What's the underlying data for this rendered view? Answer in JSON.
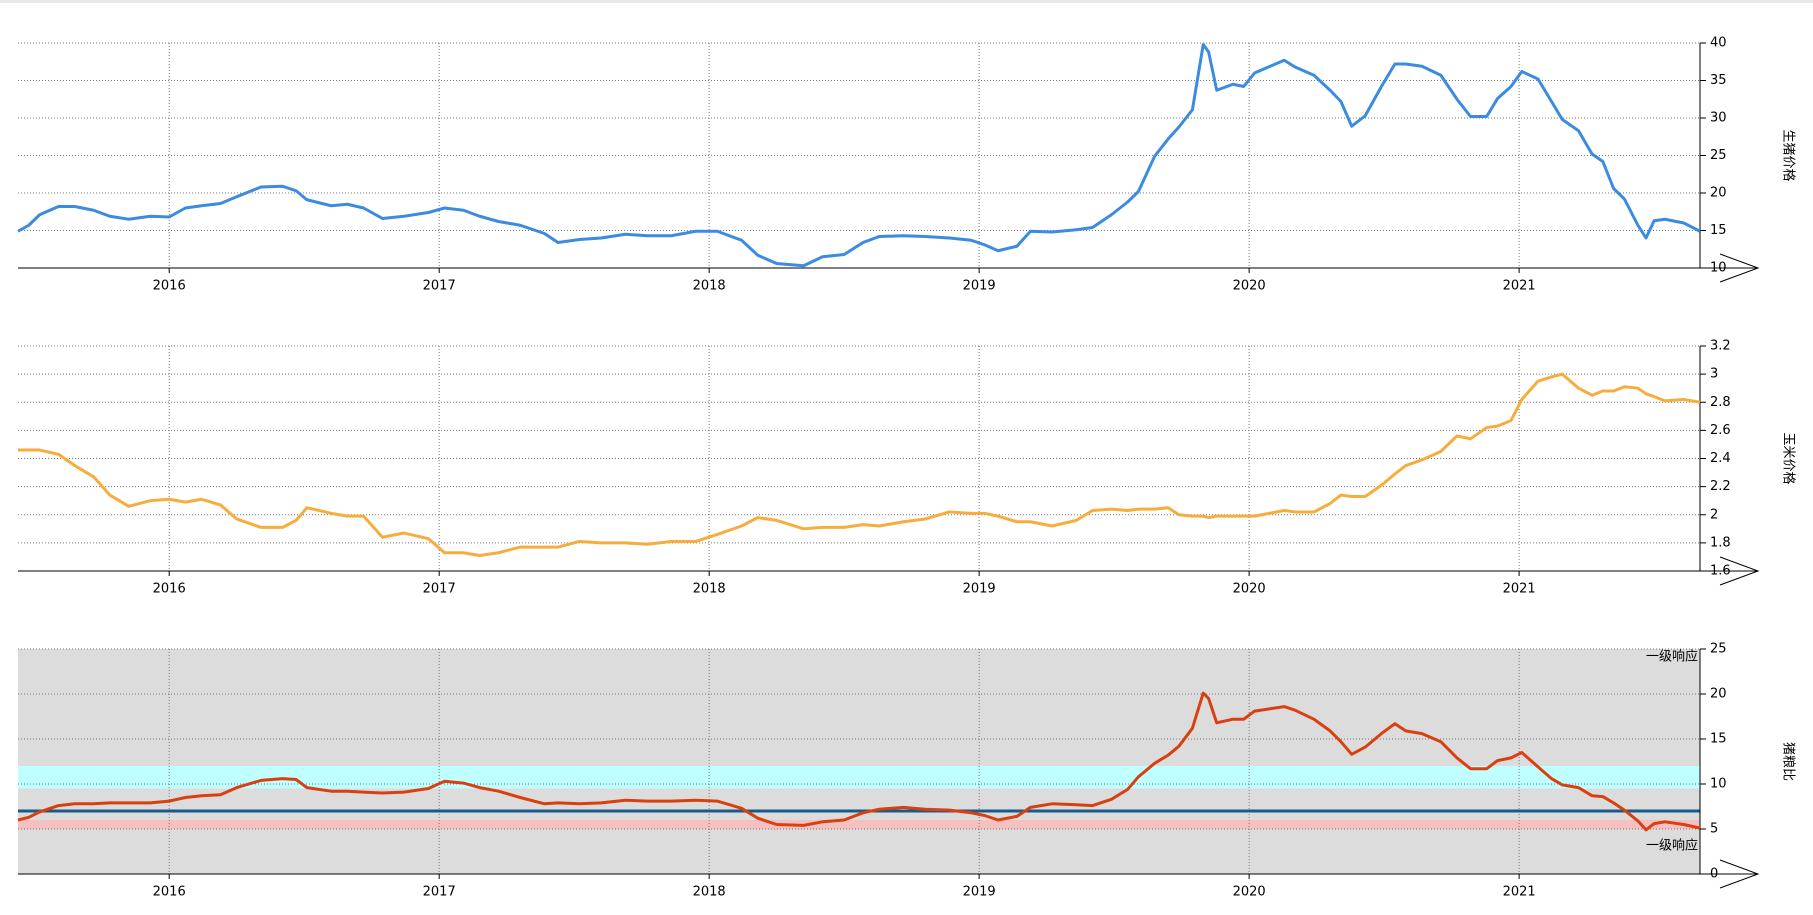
{
  "chart_data": [
    {
      "type": "line",
      "y_label": "生猪价格",
      "color": "#3b8be0",
      "grid": true,
      "xlim": [
        2015.44,
        2021.67
      ],
      "xticks": [
        2016,
        2017,
        2018,
        2019,
        2020,
        2021
      ],
      "ylim": [
        10,
        40
      ],
      "yticks": [
        10,
        15,
        20,
        25,
        30,
        35,
        40
      ],
      "x": [
        2015.44,
        2015.48,
        2015.52,
        2015.59,
        2015.65,
        2015.72,
        2015.78,
        2015.85,
        2015.93,
        2016,
        2016.06,
        2016.12,
        2016.19,
        2016.25,
        2016.34,
        2016.42,
        2016.47,
        2016.51,
        2016.6,
        2016.66,
        2016.72,
        2016.79,
        2016.87,
        2016.96,
        2017.02,
        2017.09,
        2017.15,
        2017.22,
        2017.3,
        2017.39,
        2017.44,
        2017.52,
        2017.6,
        2017.69,
        2017.77,
        2017.86,
        2017.95,
        2018.03,
        2018.12,
        2018.18,
        2018.25,
        2018.35,
        2018.42,
        2018.5,
        2018.57,
        2018.63,
        2018.72,
        2018.8,
        2018.89,
        2018.97,
        2019.02,
        2019.07,
        2019.14,
        2019.19,
        2019.27,
        2019.36,
        2019.42,
        2019.49,
        2019.55,
        2019.59,
        2019.65,
        2019.7,
        2019.74,
        2019.79,
        2019.83,
        2019.85,
        2019.88,
        2019.94,
        2019.98,
        2020.02,
        2020.13,
        2020.17,
        2020.24,
        2020.3,
        2020.34,
        2020.38,
        2020.43,
        2020.49,
        2020.54,
        2020.58,
        2020.64,
        2020.71,
        2020.77,
        2020.82,
        2020.88,
        2020.92,
        2020.97,
        2021.01,
        2021.07,
        2021.12,
        2021.16,
        2021.22,
        2021.27,
        2021.31,
        2021.35,
        2021.39,
        2021.44,
        2021.47,
        2021.5,
        2021.54,
        2021.61,
        2021.67
      ],
      "values": [
        14.9,
        15.7,
        17.1,
        18.2,
        18.2,
        17.7,
        16.9,
        16.5,
        16.9,
        16.8,
        18.0,
        18.3,
        18.6,
        19.5,
        20.8,
        20.9,
        20.3,
        19.1,
        18.3,
        18.5,
        18.0,
        16.6,
        16.9,
        17.4,
        18.0,
        17.7,
        16.9,
        16.2,
        15.7,
        14.6,
        13.4,
        13.8,
        14.0,
        14.5,
        14.3,
        14.3,
        14.9,
        14.9,
        13.7,
        11.7,
        10.6,
        10.3,
        11.5,
        11.8,
        13.4,
        14.2,
        14.3,
        14.2,
        14.0,
        13.7,
        13.1,
        12.3,
        12.9,
        14.9,
        14.8,
        15.1,
        15.4,
        17.1,
        18.8,
        20.2,
        24.9,
        27.2,
        28.8,
        31.1,
        39.8,
        38.8,
        33.7,
        34.5,
        34.2,
        36.0,
        37.7,
        36.8,
        35.7,
        33.7,
        32.2,
        28.9,
        30.3,
        34.2,
        37.2,
        37.2,
        36.9,
        35.7,
        32.5,
        30.2,
        30.2,
        32.6,
        34.2,
        36.2,
        35.2,
        32.2,
        29.8,
        28.3,
        25.2,
        24.2,
        20.6,
        19.2,
        15.7,
        14.0,
        16.3,
        16.5,
        16.0,
        14.9
      ]
    },
    {
      "type": "line",
      "y_label": "玉米价格",
      "color": "#f6ad3c",
      "grid": true,
      "xlim": [
        2015.44,
        2021.67
      ],
      "xticks": [
        2016,
        2017,
        2018,
        2019,
        2020,
        2021
      ],
      "ylim": [
        1.6,
        3.2
      ],
      "yticks": [
        1.6,
        1.8,
        2,
        2.2,
        2.4,
        2.6,
        2.8,
        3,
        3.2
      ],
      "x": [
        2015.44,
        2015.48,
        2015.52,
        2015.59,
        2015.65,
        2015.72,
        2015.78,
        2015.85,
        2015.93,
        2016,
        2016.06,
        2016.12,
        2016.19,
        2016.25,
        2016.34,
        2016.42,
        2016.47,
        2016.51,
        2016.6,
        2016.66,
        2016.72,
        2016.79,
        2016.87,
        2016.96,
        2017.02,
        2017.09,
        2017.15,
        2017.22,
        2017.3,
        2017.39,
        2017.44,
        2017.52,
        2017.6,
        2017.69,
        2017.77,
        2017.86,
        2017.95,
        2018.03,
        2018.12,
        2018.18,
        2018.25,
        2018.35,
        2018.42,
        2018.5,
        2018.57,
        2018.63,
        2018.72,
        2018.8,
        2018.89,
        2018.97,
        2019.02,
        2019.07,
        2019.14,
        2019.19,
        2019.27,
        2019.36,
        2019.42,
        2019.49,
        2019.55,
        2019.59,
        2019.65,
        2019.7,
        2019.74,
        2019.79,
        2019.83,
        2019.85,
        2019.88,
        2019.94,
        2019.98,
        2020.02,
        2020.13,
        2020.17,
        2020.24,
        2020.3,
        2020.34,
        2020.38,
        2020.43,
        2020.49,
        2020.54,
        2020.58,
        2020.64,
        2020.71,
        2020.77,
        2020.82,
        2020.88,
        2020.92,
        2020.97,
        2021.01,
        2021.07,
        2021.12,
        2021.16,
        2021.22,
        2021.27,
        2021.31,
        2021.35,
        2021.39,
        2021.44,
        2021.47,
        2021.5,
        2021.54,
        2021.61,
        2021.67
      ],
      "values": [
        2.46,
        2.46,
        2.46,
        2.43,
        2.35,
        2.27,
        2.14,
        2.06,
        2.1,
        2.11,
        2.09,
        2.11,
        2.07,
        1.97,
        1.91,
        1.91,
        1.96,
        2.05,
        2.01,
        1.99,
        1.99,
        1.84,
        1.87,
        1.83,
        1.73,
        1.73,
        1.71,
        1.73,
        1.77,
        1.77,
        1.77,
        1.81,
        1.8,
        1.8,
        1.79,
        1.81,
        1.81,
        1.86,
        1.92,
        1.98,
        1.96,
        1.9,
        1.91,
        1.91,
        1.93,
        1.92,
        1.95,
        1.97,
        2.02,
        2.01,
        2.01,
        1.99,
        1.95,
        1.95,
        1.92,
        1.96,
        2.03,
        2.04,
        2.03,
        2.04,
        2.04,
        2.05,
        2.0,
        1.99,
        1.99,
        1.98,
        1.99,
        1.99,
        1.99,
        1.99,
        2.03,
        2.02,
        2.02,
        2.08,
        2.14,
        2.13,
        2.13,
        2.21,
        2.29,
        2.35,
        2.39,
        2.45,
        2.56,
        2.54,
        2.62,
        2.63,
        2.67,
        2.82,
        2.95,
        2.98,
        3.0,
        2.9,
        2.85,
        2.88,
        2.88,
        2.91,
        2.9,
        2.86,
        2.84,
        2.81,
        2.82,
        2.8
      ]
    },
    {
      "type": "line",
      "y_label": "猪粮比",
      "color": "#d94010",
      "grid": true,
      "background": "#dcdcdc",
      "bands": [
        {
          "range": [
            9.5,
            12
          ],
          "color": "#c0ffff"
        },
        {
          "range": [
            5,
            6
          ],
          "color": "#f7c0c0"
        }
      ],
      "hline": {
        "value": 7,
        "color": "#1a5a8a"
      },
      "annotations": [
        "一级响应",
        "一级响应"
      ],
      "xlim": [
        2015.44,
        2021.67
      ],
      "xticks": [
        2016,
        2017,
        2018,
        2019,
        2020,
        2021
      ],
      "ylim": [
        0,
        25
      ],
      "yticks": [
        0,
        5,
        10,
        15,
        20,
        25
      ],
      "x": [
        2015.44,
        2015.48,
        2015.52,
        2015.59,
        2015.65,
        2015.72,
        2015.78,
        2015.85,
        2015.93,
        2016,
        2016.06,
        2016.12,
        2016.19,
        2016.25,
        2016.34,
        2016.42,
        2016.47,
        2016.51,
        2016.6,
        2016.66,
        2016.72,
        2016.79,
        2016.87,
        2016.96,
        2017.02,
        2017.09,
        2017.15,
        2017.22,
        2017.3,
        2017.39,
        2017.44,
        2017.52,
        2017.6,
        2017.69,
        2017.77,
        2017.86,
        2017.95,
        2018.03,
        2018.12,
        2018.18,
        2018.25,
        2018.35,
        2018.42,
        2018.5,
        2018.57,
        2018.63,
        2018.72,
        2018.8,
        2018.89,
        2018.97,
        2019.02,
        2019.07,
        2019.14,
        2019.19,
        2019.27,
        2019.36,
        2019.42,
        2019.49,
        2019.55,
        2019.59,
        2019.65,
        2019.7,
        2019.74,
        2019.79,
        2019.83,
        2019.85,
        2019.88,
        2019.94,
        2019.98,
        2020.02,
        2020.13,
        2020.17,
        2020.24,
        2020.3,
        2020.34,
        2020.38,
        2020.43,
        2020.49,
        2020.54,
        2020.58,
        2020.64,
        2020.71,
        2020.77,
        2020.82,
        2020.88,
        2020.92,
        2020.97,
        2021.01,
        2021.07,
        2021.12,
        2021.16,
        2021.22,
        2021.27,
        2021.31,
        2021.35,
        2021.39,
        2021.44,
        2021.47,
        2021.5,
        2021.54,
        2021.61,
        2021.67
      ],
      "values": [
        6.0,
        6.3,
        6.9,
        7.6,
        7.8,
        7.8,
        7.9,
        7.9,
        7.9,
        8.1,
        8.5,
        8.7,
        8.8,
        9.6,
        10.4,
        10.6,
        10.5,
        9.6,
        9.2,
        9.2,
        9.1,
        9.0,
        9.1,
        9.5,
        10.3,
        10.1,
        9.6,
        9.2,
        8.5,
        7.8,
        7.9,
        7.8,
        7.9,
        8.2,
        8.1,
        8.1,
        8.2,
        8.1,
        7.3,
        6.2,
        5.5,
        5.4,
        5.8,
        6.0,
        6.8,
        7.2,
        7.4,
        7.2,
        7.1,
        6.8,
        6.5,
        6.0,
        6.4,
        7.4,
        7.8,
        7.7,
        7.6,
        8.3,
        9.4,
        10.8,
        12.3,
        13.2,
        14.2,
        16.2,
        20.1,
        19.5,
        16.8,
        17.2,
        17.2,
        18.1,
        18.6,
        18.2,
        17.2,
        15.9,
        14.7,
        13.3,
        14.1,
        15.6,
        16.7,
        15.9,
        15.6,
        14.7,
        12.9,
        11.7,
        11.7,
        12.6,
        12.9,
        13.5,
        11.9,
        10.6,
        9.9,
        9.6,
        8.7,
        8.6,
        7.9,
        7.1,
        5.9,
        4.9,
        5.6,
        5.8,
        5.5,
        5.1
      ]
    }
  ]
}
